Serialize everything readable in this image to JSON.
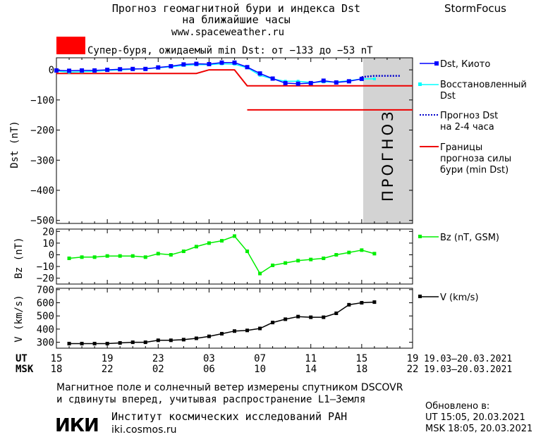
{
  "header": {
    "title_line1": "Прогноз геомагнитной бури и индекса Dst",
    "title_line2": "на ближайшие часы",
    "url": "www.spaceweather.ru",
    "brand": "StormFocus",
    "alert_text": "Супер-буря, ожидаемый min Dst: от −133 до −53 nT",
    "alert_color": "#ff0000"
  },
  "legend": {
    "dst_kyoto": "Dst, Киото",
    "dst_restored_1": "Восстановленный",
    "dst_restored_2": "Dst",
    "dst_forecast_1": "Прогноз Dst",
    "dst_forecast_2": "на 2-4 часа",
    "bounds_1": "Границы",
    "bounds_2": "прогноза силы",
    "bounds_3": "бури (min Dst)",
    "bz": "Bz (nT, GSM)",
    "v": "V (km/s)"
  },
  "forecast_band_label": "ПРОГНОЗ",
  "time_axis": {
    "ut_label": "UT",
    "msk_label": "MSK",
    "ut_ticks": [
      "15",
      "19",
      "23",
      "03",
      "07",
      "11",
      "15",
      "19"
    ],
    "msk_ticks": [
      "18",
      "22",
      "02",
      "06",
      "10",
      "14",
      "18",
      "22"
    ],
    "ut_range": "19.03–20.03.2021",
    "msk_range": "19.03–20.03.2021"
  },
  "footer": {
    "note_line1": "Магнитное поле и солнечный ветер измерены спутником DSCOVR",
    "note_line2": "и сдвинуты вперед, учитывая распространение L1–Земля",
    "logo_text": "ИКИ",
    "institute": "Институт космических исследований РАН",
    "site": "iki.cosmos.ru",
    "updated_label": "Обновлено в:",
    "updated_ut": "UT  15:05, 20.03.2021",
    "updated_msk": "MSK 18:05, 20.03.2021"
  },
  "colors": {
    "dst_kyoto": "#0000ff",
    "dst_restored": "#00ffff",
    "dst_forecast": "#0000cc",
    "bounds": "#ee0000",
    "bz": "#00ee00",
    "v": "#000000",
    "forecast_band": "#d3d3d3"
  },
  "chart_data": [
    {
      "type": "line",
      "ylabel": "Dst (nT)",
      "ylim": [
        -510,
        40
      ],
      "xlim": [
        15,
        43
      ],
      "yticks": [
        0,
        -100,
        -200,
        -300,
        -400,
        -500
      ],
      "forecast_band": [
        39,
        43
      ],
      "series": [
        {
          "name": "Dst, Киото",
          "x": [
            15,
            16,
            17,
            18,
            19,
            20,
            21,
            22,
            23,
            24,
            25,
            26,
            27,
            28,
            29,
            30,
            31,
            32,
            33,
            34,
            35,
            36,
            37,
            38,
            39
          ],
          "y": [
            -2,
            -3,
            -2,
            -2,
            0,
            2,
            3,
            3,
            8,
            12,
            18,
            20,
            19,
            24,
            24,
            9,
            -12,
            -29,
            -44,
            -46,
            -44,
            -36,
            -42,
            -38,
            -30
          ]
        },
        {
          "name": "Восстановленный Dst",
          "x": [
            15,
            16,
            17,
            18,
            19,
            20,
            21,
            22,
            23,
            24,
            25,
            26,
            27,
            28,
            29,
            30,
            31,
            32,
            33,
            34,
            35,
            36,
            37,
            38,
            39,
            40
          ],
          "y": [
            -4,
            -8,
            -6,
            -5,
            -2,
            0,
            2,
            4,
            7,
            10,
            15,
            17,
            17,
            20,
            19,
            7,
            -18,
            -30,
            -38,
            -38,
            -42,
            -40,
            -40,
            -36,
            -30,
            -30
          ]
        },
        {
          "name": "Прогноз Dst на 2-4 часа",
          "x": [
            39,
            40,
            41,
            42
          ],
          "y": [
            -24,
            -20,
            -20,
            -20
          ]
        },
        {
          "name": "Границы прогноза силы бури (min Dst)",
          "x": [
            15,
            26,
            27,
            29,
            30,
            43
          ],
          "y": [
            -12,
            -12,
            0,
            0,
            -53,
            -53
          ]
        },
        {
          "name": "",
          "x": [
            30,
            43
          ],
          "y": [
            -133,
            -133
          ]
        }
      ]
    },
    {
      "type": "line",
      "ylabel": "Bz (nT)",
      "ylim": [
        -25,
        22
      ],
      "xlim": [
        15,
        43
      ],
      "yticks": [
        20,
        10,
        0,
        -10,
        -20
      ],
      "series": [
        {
          "name": "Bz (nT, GSM)",
          "x": [
            16,
            17,
            18,
            19,
            20,
            21,
            22,
            23,
            24,
            25,
            26,
            27,
            28,
            29,
            30,
            31,
            32,
            33,
            34,
            35,
            36,
            37,
            38,
            39,
            40
          ],
          "y": [
            -3,
            -2,
            -2,
            -1,
            -1,
            -1,
            -2,
            1,
            0,
            3,
            7,
            10,
            12,
            16,
            3,
            -16,
            -9,
            -7,
            -5,
            -4,
            -3,
            0,
            2,
            4,
            1
          ]
        }
      ]
    },
    {
      "type": "line",
      "ylabel": "V (km/s)",
      "ylim": [
        255,
        710
      ],
      "xlim": [
        15,
        43
      ],
      "yticks": [
        700,
        600,
        500,
        400,
        300
      ],
      "series": [
        {
          "name": "V (km/s)",
          "x": [
            16,
            17,
            18,
            19,
            20,
            21,
            22,
            23,
            24,
            25,
            26,
            27,
            28,
            29,
            30,
            31,
            32,
            33,
            34,
            35,
            36,
            37,
            38,
            39,
            40
          ],
          "y": [
            290,
            290,
            290,
            290,
            295,
            300,
            300,
            315,
            315,
            320,
            330,
            345,
            365,
            385,
            390,
            405,
            450,
            475,
            495,
            490,
            490,
            520,
            585,
            600,
            605
          ]
        }
      ]
    }
  ]
}
